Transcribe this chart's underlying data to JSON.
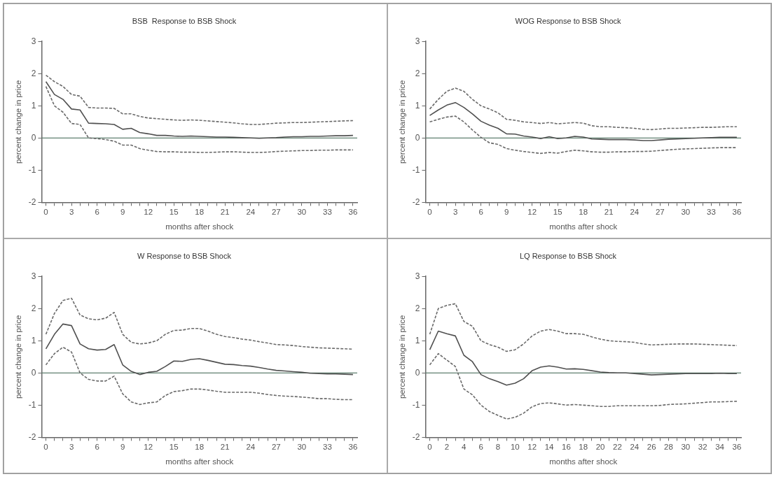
{
  "chart_data": [
    {
      "type": "line",
      "title": "BSB  Response to BSB Shock",
      "xlabel": "months after shock",
      "ylabel": "percent change in price",
      "marker": "none",
      "grid": false,
      "legend": false,
      "x": [
        0,
        1,
        2,
        3,
        4,
        5,
        6,
        7,
        8,
        9,
        10,
        11,
        12,
        13,
        14,
        15,
        16,
        17,
        18,
        19,
        20,
        21,
        22,
        23,
        24,
        25,
        26,
        27,
        28,
        29,
        30,
        31,
        32,
        33,
        34,
        35,
        36
      ],
      "xlim": [
        -0.5,
        36.5
      ],
      "xticks": [
        0,
        {
          "value": 1,
          "label": null
        },
        {
          "value": 2,
          "label": null
        },
        3,
        {
          "value": 4,
          "label": null
        },
        {
          "value": 5,
          "label": null
        },
        6,
        {
          "value": 7,
          "label": null
        },
        {
          "value": 8,
          "label": null
        },
        9,
        {
          "value": 10,
          "label": null
        },
        {
          "value": 11,
          "label": null
        },
        12,
        {
          "value": 13,
          "label": null
        },
        {
          "value": 14,
          "label": null
        },
        15,
        {
          "value": 16,
          "label": null
        },
        {
          "value": 17,
          "label": null
        },
        18,
        {
          "value": 19,
          "label": null
        },
        {
          "value": 20,
          "label": null
        },
        21,
        {
          "value": 22,
          "label": null
        },
        {
          "value": 23,
          "label": null
        },
        24,
        {
          "value": 25,
          "label": null
        },
        {
          "value": 26,
          "label": null
        },
        27,
        {
          "value": 28,
          "label": null
        },
        {
          "value": 29,
          "label": null
        },
        30,
        {
          "value": 31,
          "label": null
        },
        {
          "value": 32,
          "label": null
        },
        33,
        {
          "value": 34,
          "label": null
        },
        {
          "value": 35,
          "label": null
        },
        36
      ],
      "ylim": [
        -2,
        3
      ],
      "yticks": [
        -2,
        -1,
        0,
        1,
        2,
        3
      ],
      "ref_lines": [
        {
          "axis": "y",
          "value": 0,
          "color": "#5f7f6f"
        }
      ],
      "series": [
        {
          "color": "#505050",
          "line_style": "solid",
          "values": [
            1.75,
            1.35,
            1.2,
            0.9,
            0.87,
            0.46,
            0.45,
            0.44,
            0.42,
            0.27,
            0.3,
            0.17,
            0.13,
            0.08,
            0.08,
            0.06,
            0.05,
            0.06,
            0.05,
            0.04,
            0.03,
            0.03,
            0.02,
            0.01,
            0.0,
            -0.01,
            0.0,
            0.01,
            0.03,
            0.04,
            0.04,
            0.05,
            0.05,
            0.06,
            0.07,
            0.07,
            0.08
          ]
        },
        {
          "color": "#6a6a6a",
          "line_style": "dashed",
          "values": [
            1.95,
            1.75,
            1.6,
            1.35,
            1.3,
            0.95,
            0.93,
            0.93,
            0.92,
            0.75,
            0.75,
            0.67,
            0.62,
            0.6,
            0.58,
            0.56,
            0.55,
            0.56,
            0.55,
            0.53,
            0.51,
            0.49,
            0.47,
            0.44,
            0.42,
            0.42,
            0.44,
            0.46,
            0.47,
            0.48,
            0.48,
            0.49,
            0.5,
            0.51,
            0.52,
            0.53,
            0.54
          ]
        },
        {
          "color": "#6a6a6a",
          "line_style": "dashed",
          "values": [
            1.6,
            1.0,
            0.8,
            0.45,
            0.42,
            0.0,
            -0.02,
            -0.05,
            -0.1,
            -0.22,
            -0.22,
            -0.33,
            -0.38,
            -0.42,
            -0.43,
            -0.43,
            -0.44,
            -0.44,
            -0.45,
            -0.45,
            -0.44,
            -0.43,
            -0.43,
            -0.44,
            -0.45,
            -0.45,
            -0.44,
            -0.42,
            -0.41,
            -0.4,
            -0.39,
            -0.39,
            -0.38,
            -0.38,
            -0.37,
            -0.37,
            -0.37
          ]
        }
      ]
    },
    {
      "type": "line",
      "title": "WOG Response to BSB Shock",
      "xlabel": "months after shock",
      "ylabel": "percent change in price",
      "marker": "none",
      "grid": false,
      "legend": false,
      "x": [
        0,
        1,
        2,
        3,
        4,
        5,
        6,
        7,
        8,
        9,
        10,
        11,
        12,
        13,
        14,
        15,
        16,
        17,
        18,
        19,
        20,
        21,
        22,
        23,
        24,
        25,
        26,
        27,
        28,
        29,
        30,
        31,
        32,
        33,
        34,
        35,
        36
      ],
      "xlim": [
        -0.5,
        36.5
      ],
      "xticks": [
        0,
        {
          "value": 1,
          "label": null
        },
        {
          "value": 2,
          "label": null
        },
        3,
        {
          "value": 4,
          "label": null
        },
        {
          "value": 5,
          "label": null
        },
        6,
        {
          "value": 7,
          "label": null
        },
        {
          "value": 8,
          "label": null
        },
        9,
        {
          "value": 10,
          "label": null
        },
        {
          "value": 11,
          "label": null
        },
        12,
        {
          "value": 13,
          "label": null
        },
        {
          "value": 14,
          "label": null
        },
        15,
        {
          "value": 16,
          "label": null
        },
        {
          "value": 17,
          "label": null
        },
        18,
        {
          "value": 19,
          "label": null
        },
        {
          "value": 20,
          "label": null
        },
        21,
        {
          "value": 22,
          "label": null
        },
        {
          "value": 23,
          "label": null
        },
        24,
        {
          "value": 25,
          "label": null
        },
        {
          "value": 26,
          "label": null
        },
        27,
        {
          "value": 28,
          "label": null
        },
        {
          "value": 29,
          "label": null
        },
        30,
        {
          "value": 31,
          "label": null
        },
        {
          "value": 32,
          "label": null
        },
        33,
        {
          "value": 34,
          "label": null
        },
        {
          "value": 35,
          "label": null
        },
        36
      ],
      "ylim": [
        -2,
        3
      ],
      "yticks": [
        -2,
        -1,
        0,
        1,
        2,
        3
      ],
      "ref_lines": [
        {
          "axis": "y",
          "value": 0,
          "color": "#5f7f6f"
        }
      ],
      "series": [
        {
          "color": "#505050",
          "line_style": "solid",
          "values": [
            0.7,
            0.87,
            1.02,
            1.1,
            0.95,
            0.75,
            0.52,
            0.4,
            0.3,
            0.13,
            0.12,
            0.06,
            0.03,
            -0.02,
            0.04,
            -0.02,
            0.0,
            0.05,
            0.03,
            -0.03,
            -0.04,
            -0.05,
            -0.05,
            -0.05,
            -0.06,
            -0.08,
            -0.08,
            -0.06,
            -0.04,
            -0.03,
            -0.02,
            -0.01,
            0.0,
            0.01,
            0.02,
            0.02,
            0.02
          ]
        },
        {
          "color": "#6a6a6a",
          "line_style": "dashed",
          "values": [
            0.9,
            1.2,
            1.45,
            1.55,
            1.45,
            1.2,
            1.0,
            0.9,
            0.78,
            0.58,
            0.55,
            0.5,
            0.48,
            0.45,
            0.48,
            0.44,
            0.46,
            0.48,
            0.46,
            0.38,
            0.35,
            0.35,
            0.33,
            0.32,
            0.3,
            0.27,
            0.26,
            0.28,
            0.3,
            0.3,
            0.31,
            0.32,
            0.33,
            0.33,
            0.34,
            0.35,
            0.35
          ]
        },
        {
          "color": "#6a6a6a",
          "line_style": "dashed",
          "values": [
            0.5,
            0.58,
            0.65,
            0.68,
            0.5,
            0.25,
            0.02,
            -0.15,
            -0.2,
            -0.33,
            -0.38,
            -0.42,
            -0.45,
            -0.48,
            -0.45,
            -0.47,
            -0.42,
            -0.38,
            -0.4,
            -0.43,
            -0.44,
            -0.44,
            -0.43,
            -0.43,
            -0.42,
            -0.42,
            -0.41,
            -0.39,
            -0.37,
            -0.35,
            -0.34,
            -0.33,
            -0.32,
            -0.31,
            -0.3,
            -0.3,
            -0.3
          ]
        }
      ]
    },
    {
      "type": "line",
      "title": "W Response to BSB Shock",
      "xlabel": "months after shock",
      "ylabel": "percent change in price",
      "marker": "none",
      "grid": false,
      "legend": false,
      "x": [
        0,
        1,
        2,
        3,
        4,
        5,
        6,
        7,
        8,
        9,
        10,
        11,
        12,
        13,
        14,
        15,
        16,
        17,
        18,
        19,
        20,
        21,
        22,
        23,
        24,
        25,
        26,
        27,
        28,
        29,
        30,
        31,
        32,
        33,
        34,
        35,
        36
      ],
      "xlim": [
        -0.5,
        36.5
      ],
      "xticks": [
        0,
        {
          "value": 1,
          "label": null
        },
        {
          "value": 2,
          "label": null
        },
        3,
        {
          "value": 4,
          "label": null
        },
        {
          "value": 5,
          "label": null
        },
        6,
        {
          "value": 7,
          "label": null
        },
        {
          "value": 8,
          "label": null
        },
        9,
        {
          "value": 10,
          "label": null
        },
        {
          "value": 11,
          "label": null
        },
        12,
        {
          "value": 13,
          "label": null
        },
        {
          "value": 14,
          "label": null
        },
        15,
        {
          "value": 16,
          "label": null
        },
        {
          "value": 17,
          "label": null
        },
        18,
        {
          "value": 19,
          "label": null
        },
        {
          "value": 20,
          "label": null
        },
        21,
        {
          "value": 22,
          "label": null
        },
        {
          "value": 23,
          "label": null
        },
        24,
        {
          "value": 25,
          "label": null
        },
        {
          "value": 26,
          "label": null
        },
        27,
        {
          "value": 28,
          "label": null
        },
        {
          "value": 29,
          "label": null
        },
        30,
        {
          "value": 31,
          "label": null
        },
        {
          "value": 32,
          "label": null
        },
        33,
        {
          "value": 34,
          "label": null
        },
        {
          "value": 35,
          "label": null
        },
        36
      ],
      "ylim": [
        -2,
        3
      ],
      "yticks": [
        -2,
        -1,
        0,
        1,
        2,
        3
      ],
      "ref_lines": [
        {
          "axis": "y",
          "value": 0,
          "color": "#5f7f6f"
        }
      ],
      "series": [
        {
          "color": "#505050",
          "line_style": "solid",
          "values": [
            0.75,
            1.2,
            1.52,
            1.47,
            0.9,
            0.75,
            0.71,
            0.73,
            0.88,
            0.25,
            0.05,
            -0.05,
            0.02,
            0.05,
            0.2,
            0.37,
            0.36,
            0.42,
            0.44,
            0.39,
            0.33,
            0.27,
            0.26,
            0.23,
            0.21,
            0.17,
            0.12,
            0.08,
            0.06,
            0.04,
            0.02,
            -0.01,
            -0.02,
            -0.03,
            -0.03,
            -0.04,
            -0.05
          ]
        },
        {
          "color": "#6a6a6a",
          "line_style": "dashed",
          "values": [
            1.2,
            1.85,
            2.25,
            2.32,
            1.8,
            1.68,
            1.65,
            1.7,
            1.88,
            1.2,
            0.95,
            0.9,
            0.93,
            1.0,
            1.2,
            1.32,
            1.33,
            1.38,
            1.38,
            1.3,
            1.2,
            1.13,
            1.1,
            1.05,
            1.02,
            0.97,
            0.93,
            0.88,
            0.87,
            0.85,
            0.82,
            0.8,
            0.78,
            0.77,
            0.76,
            0.75,
            0.74
          ]
        },
        {
          "color": "#6a6a6a",
          "line_style": "dashed",
          "values": [
            0.25,
            0.6,
            0.8,
            0.65,
            0.0,
            -0.2,
            -0.25,
            -0.25,
            -0.1,
            -0.65,
            -0.9,
            -0.98,
            -0.93,
            -0.9,
            -0.7,
            -0.58,
            -0.55,
            -0.5,
            -0.5,
            -0.53,
            -0.57,
            -0.6,
            -0.6,
            -0.6,
            -0.6,
            -0.63,
            -0.67,
            -0.7,
            -0.72,
            -0.73,
            -0.75,
            -0.77,
            -0.8,
            -0.8,
            -0.82,
            -0.83,
            -0.83
          ]
        }
      ]
    },
    {
      "type": "line",
      "title": "LQ Response to BSB Shock",
      "xlabel": "months after shock",
      "ylabel": "percent change in price",
      "marker": "none",
      "grid": false,
      "legend": false,
      "x": [
        0,
        1,
        2,
        3,
        4,
        5,
        6,
        7,
        8,
        9,
        10,
        11,
        12,
        13,
        14,
        15,
        16,
        17,
        18,
        19,
        20,
        21,
        22,
        23,
        24,
        25,
        26,
        27,
        28,
        29,
        30,
        31,
        32,
        33,
        34,
        35,
        36
      ],
      "xlim": [
        -0.5,
        36.5
      ],
      "xticks": [
        0,
        {
          "value": 1,
          "label": null
        },
        2,
        {
          "value": 3,
          "label": null
        },
        4,
        {
          "value": 5,
          "label": null
        },
        6,
        {
          "value": 7,
          "label": null
        },
        8,
        {
          "value": 9,
          "label": null
        },
        10,
        {
          "value": 11,
          "label": null
        },
        12,
        {
          "value": 13,
          "label": null
        },
        14,
        {
          "value": 15,
          "label": null
        },
        16,
        {
          "value": 17,
          "label": null
        },
        18,
        {
          "value": 19,
          "label": null
        },
        20,
        {
          "value": 21,
          "label": null
        },
        22,
        {
          "value": 23,
          "label": null
        },
        24,
        {
          "value": 25,
          "label": null
        },
        26,
        {
          "value": 27,
          "label": null
        },
        28,
        {
          "value": 29,
          "label": null
        },
        30,
        {
          "value": 31,
          "label": null
        },
        32,
        {
          "value": 33,
          "label": null
        },
        34,
        {
          "value": 35,
          "label": null
        },
        36
      ],
      "ylim": [
        -2,
        3
      ],
      "yticks": [
        -2,
        -1,
        0,
        1,
        2,
        3
      ],
      "ref_lines": [
        {
          "axis": "y",
          "value": 0,
          "color": "#5f7f6f"
        }
      ],
      "series": [
        {
          "color": "#505050",
          "line_style": "solid",
          "values": [
            0.72,
            1.3,
            1.22,
            1.15,
            0.55,
            0.35,
            -0.05,
            -0.18,
            -0.27,
            -0.38,
            -0.32,
            -0.18,
            0.07,
            0.18,
            0.22,
            0.18,
            0.12,
            0.13,
            0.11,
            0.07,
            0.03,
            0.01,
            0.0,
            0.0,
            -0.02,
            -0.04,
            -0.06,
            -0.05,
            -0.04,
            -0.03,
            -0.02,
            -0.02,
            -0.02,
            -0.02,
            -0.01,
            -0.02,
            -0.02
          ]
        },
        {
          "color": "#6a6a6a",
          "line_style": "dashed",
          "values": [
            1.2,
            2.0,
            2.1,
            2.15,
            1.6,
            1.45,
            1.0,
            0.88,
            0.8,
            0.67,
            0.72,
            0.9,
            1.15,
            1.3,
            1.35,
            1.3,
            1.22,
            1.22,
            1.2,
            1.12,
            1.05,
            1.0,
            0.98,
            0.97,
            0.95,
            0.9,
            0.87,
            0.88,
            0.89,
            0.9,
            0.9,
            0.9,
            0.89,
            0.88,
            0.87,
            0.86,
            0.85
          ]
        },
        {
          "color": "#6a6a6a",
          "line_style": "dashed",
          "values": [
            0.25,
            0.6,
            0.4,
            0.2,
            -0.5,
            -0.68,
            -1.0,
            -1.2,
            -1.32,
            -1.43,
            -1.38,
            -1.25,
            -1.05,
            -0.95,
            -0.93,
            -0.96,
            -1.0,
            -0.98,
            -1.0,
            -1.02,
            -1.04,
            -1.04,
            -1.02,
            -1.02,
            -1.02,
            -1.02,
            -1.02,
            -1.01,
            -0.98,
            -0.97,
            -0.96,
            -0.94,
            -0.92,
            -0.9,
            -0.9,
            -0.89,
            -0.88
          ]
        }
      ]
    }
  ]
}
